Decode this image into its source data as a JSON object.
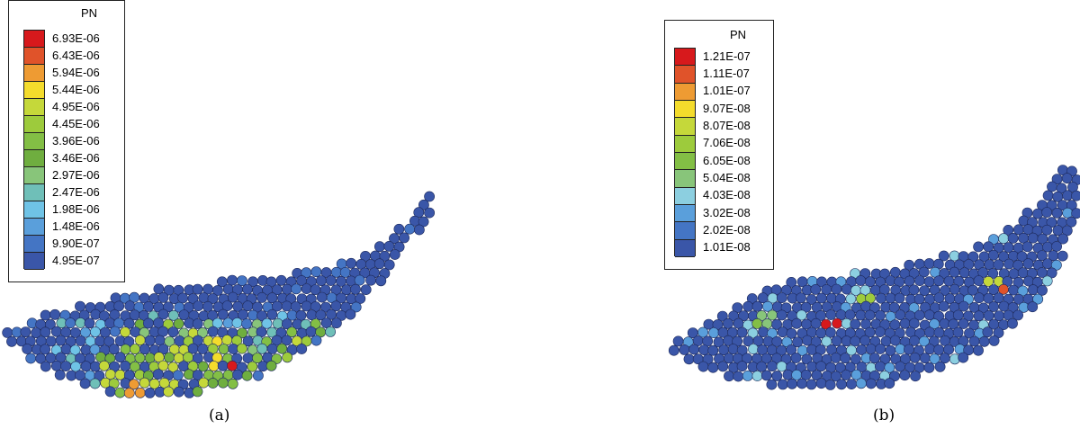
{
  "panels": [
    {
      "id": "a",
      "caption": "(a)",
      "legend": {
        "title": "PN",
        "labels": [
          "6.93E-06",
          "6.43E-06",
          "5.94E-06",
          "5.44E-06",
          "4.95E-06",
          "4.45E-06",
          "3.96E-06",
          "3.46E-06",
          "2.97E-06",
          "2.47E-06",
          "1.98E-06",
          "1.48E-06",
          "9.90E-07",
          "4.95E-07"
        ],
        "colors": [
          "#d7191c",
          "#e0532a",
          "#ee9b33",
          "#f4dc2c",
          "#c5d83a",
          "#9dcb3c",
          "#83bf45",
          "#6fae3f",
          "#88c57a",
          "#6fbfb8",
          "#6fc3e6",
          "#5a9fdb",
          "#4475c4",
          "#3a56a8"
        ]
      }
    },
    {
      "id": "b",
      "caption": "(b)",
      "legend": {
        "title": "PN",
        "labels": [
          "1.21E-07",
          "1.11E-07",
          "1.01E-07",
          "9.07E-08",
          "8.07E-08",
          "7.06E-08",
          "6.05E-08",
          "5.04E-08",
          "4.03E-08",
          "3.02E-08",
          "2.02E-08",
          "1.01E-08"
        ],
        "colors": [
          "#d7191c",
          "#e0532a",
          "#ee9b33",
          "#f4dc2c",
          "#c5d83a",
          "#9dcb3c",
          "#83bf45",
          "#88c57a",
          "#8ccfe0",
          "#5a9fdb",
          "#4475c4",
          "#3a56a8"
        ]
      }
    }
  ]
}
